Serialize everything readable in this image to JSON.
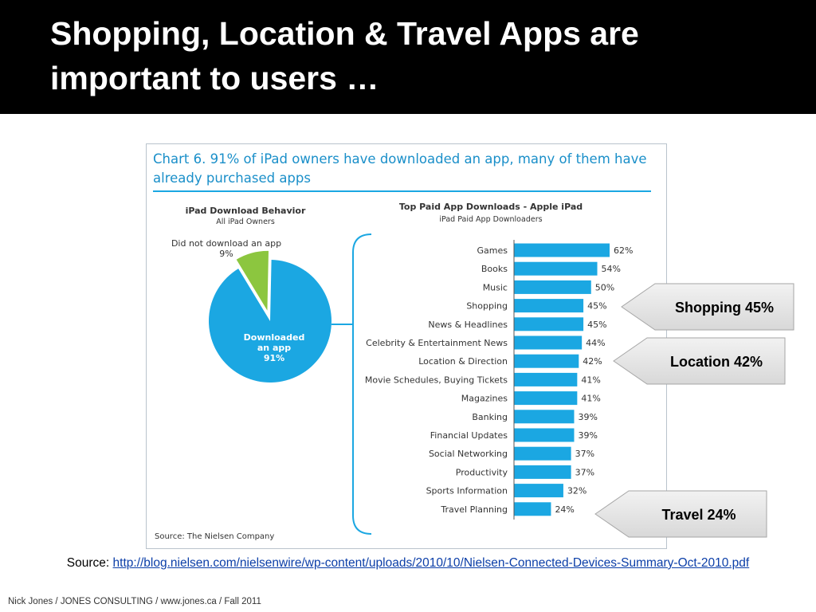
{
  "slide": {
    "title": "Shopping, Location & Travel Apps are important to users …",
    "source_prefix": "Source:",
    "source_url": "http://blog.nielsen.com/nielsenwire/wp-content/uploads/2010/10/Nielsen-Connected-Devices-Summary-Oct-2010.pdf",
    "footer": "Nick Jones / JONES CONSULTING / www.jones.ca / Fall 2011"
  },
  "figure": {
    "title_line1": "Chart 6. 91% of iPad owners have downloaded an app, many of them have",
    "title_line2": "already purchased apps",
    "source": "Source: The Nielsen Company",
    "colors": {
      "title": "#1a8fc9",
      "bar": "#1ba7e2",
      "pie_main": "#1ba7e2",
      "pie_slice": "#8cc63f"
    }
  },
  "chart_data": [
    {
      "type": "pie",
      "title": "iPad Download Behavior",
      "subtitle": "All iPad Owners",
      "slices": [
        {
          "label_line1": "Downloaded",
          "label_line2": "an app",
          "value": 91,
          "value_label": "91%",
          "color": "#1ba7e2"
        },
        {
          "label_line1": "Did not download an app",
          "label_line2": "",
          "value": 9,
          "value_label": "9%",
          "color": "#8cc63f"
        }
      ]
    },
    {
      "type": "bar",
      "orientation": "horizontal",
      "title": "Top Paid App Downloads - Apple iPad",
      "subtitle": "iPad Paid App Downloaders",
      "categories": [
        "Games",
        "Books",
        "Music",
        "Shopping",
        "News & Headlines",
        "Celebrity & Entertainment News",
        "Location & Direction",
        "Movie Schedules, Buying Tickets",
        "Magazines",
        "Banking",
        "Financial Updates",
        "Social Networking",
        "Productivity",
        "Sports Information",
        "Travel Planning"
      ],
      "values": [
        62,
        54,
        50,
        45,
        45,
        44,
        42,
        41,
        41,
        39,
        39,
        37,
        37,
        32,
        24
      ],
      "value_labels": [
        "62%",
        "54%",
        "50%",
        "45%",
        "45%",
        "44%",
        "42%",
        "41%",
        "41%",
        "39%",
        "39%",
        "37%",
        "37%",
        "32%",
        "24%"
      ],
      "xlim": [
        0,
        62
      ],
      "grid": false,
      "color": "#1ba7e2"
    }
  ],
  "callouts": [
    {
      "label": "Shopping 45%"
    },
    {
      "label": "Location 42%"
    },
    {
      "label": "Travel 24%"
    }
  ]
}
